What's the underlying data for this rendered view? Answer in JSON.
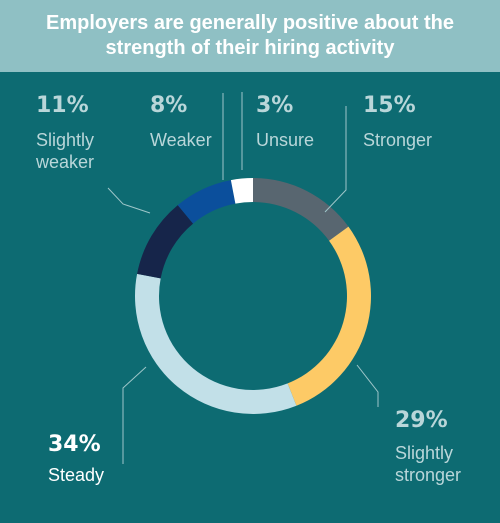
{
  "header": {
    "title_line1": "Employers are generally positive about the",
    "title_line2": "strength of their hiring activity"
  },
  "chart_data": {
    "type": "pie",
    "donut": true,
    "title": "Employers are generally positive about the strength of their hiring activity",
    "slices": [
      {
        "label": "Stronger",
        "label_lines": [
          "Stronger"
        ],
        "value": 15,
        "value_text": "15%",
        "color": "#586670",
        "pct_color": "#b9d6d9",
        "lbl_color": "#b9d6d9"
      },
      {
        "label": "Slightly stronger",
        "label_lines": [
          "Slightly",
          "stronger"
        ],
        "value": 29,
        "value_text": "29%",
        "color": "#fdca66",
        "pct_color": "#b9d6d9",
        "lbl_color": "#b9d6d9"
      },
      {
        "label": "Steady",
        "label_lines": [
          "Steady"
        ],
        "value": 34,
        "value_text": "34%",
        "color": "#c2e0e8",
        "pct_color": "#ffffff",
        "lbl_color": "#ffffff"
      },
      {
        "label": "Slightly weaker",
        "label_lines": [
          "Slightly",
          "weaker"
        ],
        "value": 11,
        "value_text": "11%",
        "color": "#16254a",
        "pct_color": "#b9d6d9",
        "lbl_color": "#b9d6d9"
      },
      {
        "label": "Weaker",
        "label_lines": [
          "Weaker"
        ],
        "value": 8,
        "value_text": "8%",
        "color": "#0b4f9c",
        "pct_color": "#b9d6d9",
        "lbl_color": "#b9d6d9"
      },
      {
        "label": "Unsure",
        "label_lines": [
          "Unsure"
        ],
        "value": 3,
        "value_text": "3%",
        "color": "#ffffff",
        "pct_color": "#b9d6d9",
        "lbl_color": "#b9d6d9"
      }
    ]
  },
  "colors": {
    "background": "#0d6b72",
    "header_band": "#8fc0c4",
    "leader_lines": "#9ec6c9"
  }
}
